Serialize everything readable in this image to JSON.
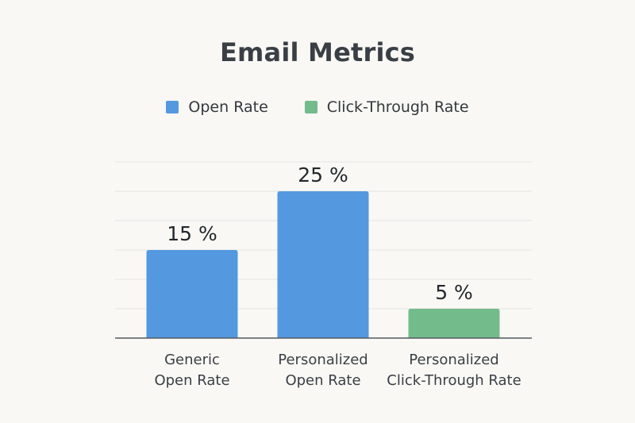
{
  "colors": {
    "open_rate": "#5499e0",
    "click_through_rate": "#74bb8b",
    "grid": "#e3e3e3",
    "axis": "#555b60"
  },
  "chart_data": {
    "type": "bar",
    "title": "Email Metrics",
    "xlabel": "",
    "ylabel": "",
    "ylim": [
      0,
      30
    ],
    "grid": true,
    "legend_position": "top-center",
    "legend": [
      {
        "name": "Open Rate",
        "color": "#5499e0"
      },
      {
        "name": "Click-Through Rate",
        "color": "#74bb8b"
      }
    ],
    "categories": [
      [
        "Generic",
        "Open Rate"
      ],
      [
        "Personalized",
        "Open Rate"
      ],
      [
        "Personalized",
        "Click-Through Rate"
      ]
    ],
    "values": [
      15,
      25,
      5
    ],
    "value_labels": [
      "15 %",
      "25 %",
      "5 %"
    ],
    "bar_series": [
      "Open Rate",
      "Open Rate",
      "Click-Through Rate"
    ]
  }
}
